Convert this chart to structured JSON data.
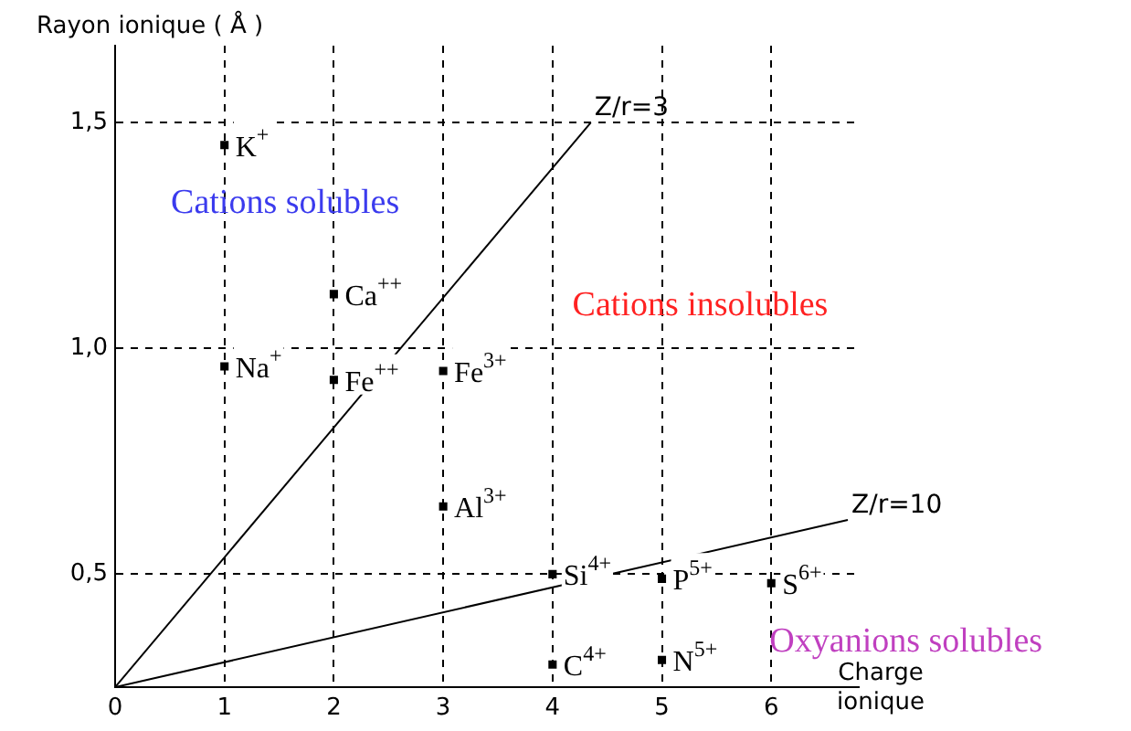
{
  "chart_data": {
    "type": "scatter",
    "xlabel": "Charge ionique",
    "ylabel": "Rayon ionique ( Å )",
    "xlim": [
      0,
      6.8
    ],
    "ylim": [
      0.25,
      1.67
    ],
    "xticks": [
      0,
      1,
      2,
      3,
      4,
      5,
      6
    ],
    "yticks": [
      {
        "value": 0.5,
        "label": "0,5"
      },
      {
        "value": 1.0,
        "label": "1,0"
      },
      {
        "value": 1.5,
        "label": "1,5"
      }
    ],
    "grid": true,
    "marker": "square",
    "line_style": "solid",
    "series": [
      {
        "name": "Z/r=3",
        "type": "line",
        "marker": "none",
        "color": "#000000",
        "x": [
          0,
          4.35
        ],
        "values": [
          0.25,
          1.5
        ]
      },
      {
        "name": "Z/r=10",
        "type": "line",
        "marker": "none",
        "color": "#000000",
        "x": [
          0,
          6.7
        ],
        "values": [
          0.25,
          0.62
        ]
      },
      {
        "name": "K$^{+}$",
        "color": "#000000",
        "x": [
          1
        ],
        "values": [
          1.45
        ]
      },
      {
        "name": "Ca$^{++}$",
        "color": "#000000",
        "x": [
          2
        ],
        "values": [
          1.12
        ]
      },
      {
        "name": "Na$^{+}$",
        "color": "#000000",
        "x": [
          1
        ],
        "values": [
          0.96
        ]
      },
      {
        "name": "Fe$^{++}$",
        "color": "#000000",
        "x": [
          2
        ],
        "values": [
          0.93
        ]
      },
      {
        "name": "Fe$^{3+}$",
        "color": "#000000",
        "x": [
          3
        ],
        "values": [
          0.95
        ]
      },
      {
        "name": "Al$^{3+}$",
        "color": "#000000",
        "x": [
          3
        ],
        "values": [
          0.65
        ]
      },
      {
        "name": "Si$^{4+}$",
        "color": "#000000",
        "x": [
          4
        ],
        "values": [
          0.5
        ]
      },
      {
        "name": "P$^{5+}$",
        "color": "#000000",
        "x": [
          5
        ],
        "values": [
          0.49
        ]
      },
      {
        "name": "S$^{6+}$",
        "color": "#000000",
        "x": [
          6
        ],
        "values": [
          0.48
        ]
      },
      {
        "name": "C$^{4+}$",
        "color": "#000000",
        "x": [
          4
        ],
        "values": [
          0.3
        ]
      },
      {
        "name": "N$^{5+}$",
        "color": "#000000",
        "x": [
          5
        ],
        "values": [
          0.31
        ]
      }
    ],
    "annotations": [
      "Cations solubles",
      "Cations insolubles",
      "Oxyanions solubles"
    ]
  }
}
